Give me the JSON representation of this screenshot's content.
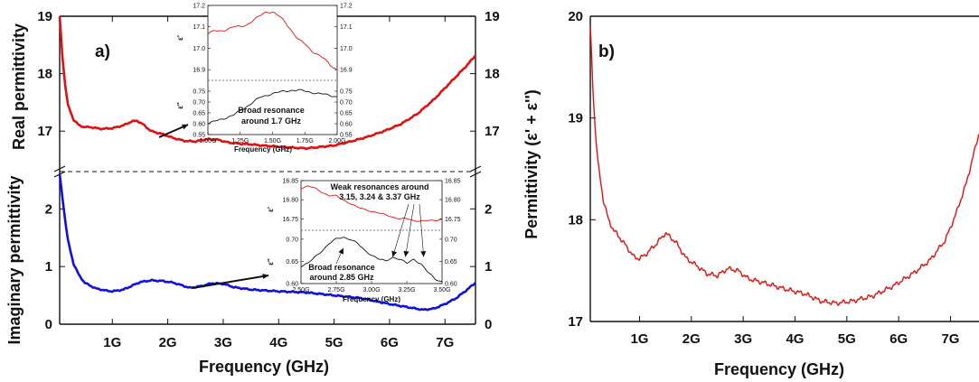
{
  "chart_data": [
    {
      "panel": "a)",
      "type": "line",
      "xlabel": "Frequency (GHz)",
      "x_ticks": [
        "1G",
        "2G",
        "3G",
        "4G",
        "5G",
        "6G",
        "7G"
      ],
      "xlim": [
        0.05,
        7.55
      ],
      "upper": {
        "ylabel": "Real permittivity",
        "ylim": [
          16.5,
          19
        ],
        "y_ticks": [
          "17",
          "18",
          "19"
        ],
        "series": [
          {
            "color": "#e01010",
            "x": [
              0.05,
              0.1,
              0.15,
              0.2,
              0.3,
              0.4,
              0.5,
              0.6,
              0.8,
              1.0,
              1.2,
              1.35,
              1.45,
              1.55,
              1.7,
              1.9,
              2.1,
              2.3,
              2.5,
              2.7,
              2.9,
              3.1,
              3.3,
              3.5,
              3.7,
              4.0,
              4.3,
              4.5,
              4.7,
              5.0,
              5.3,
              5.6,
              5.9,
              6.2,
              6.5,
              6.8,
              7.0,
              7.2,
              7.4,
              7.55
            ],
            "y": [
              19.0,
              18.3,
              17.8,
              17.45,
              17.2,
              17.1,
              17.07,
              17.07,
              17.04,
              17.05,
              17.1,
              17.17,
              17.18,
              17.12,
              17.0,
              16.95,
              16.88,
              16.83,
              16.82,
              16.86,
              16.85,
              16.8,
              16.78,
              16.77,
              16.75,
              16.73,
              16.71,
              16.7,
              16.72,
              16.75,
              16.82,
              16.9,
              17.0,
              17.12,
              17.3,
              17.55,
              17.75,
              17.95,
              18.15,
              18.32
            ]
          }
        ]
      },
      "lower": {
        "ylabel": "Imaginary permittivity",
        "ylim": [
          0,
          2.6
        ],
        "y_ticks": [
          "0",
          "1",
          "2"
        ],
        "series": [
          {
            "color": "#1010e0",
            "x": [
              0.05,
              0.1,
              0.15,
              0.2,
              0.3,
              0.4,
              0.5,
              0.7,
              0.9,
              1.0,
              1.2,
              1.5,
              1.7,
              1.9,
              2.1,
              2.4,
              2.6,
              2.8,
              3.0,
              3.2,
              3.5,
              4.0,
              4.5,
              5.0,
              5.5,
              6.0,
              6.3,
              6.6,
              6.8,
              7.0,
              7.2,
              7.4,
              7.55
            ],
            "y": [
              2.6,
              2.2,
              1.8,
              1.45,
              1.05,
              0.85,
              0.72,
              0.62,
              0.58,
              0.57,
              0.6,
              0.73,
              0.76,
              0.75,
              0.72,
              0.63,
              0.66,
              0.71,
              0.7,
              0.64,
              0.6,
              0.57,
              0.55,
              0.5,
              0.45,
              0.35,
              0.3,
              0.25,
              0.27,
              0.35,
              0.45,
              0.6,
              0.72
            ]
          }
        ]
      },
      "inset_upper": {
        "xlabel": "Frequency (GHz)",
        "x_ticks": [
          "1.00G",
          "1.25G",
          "1.50G",
          "1.75G",
          "2.00G"
        ],
        "xlim": [
          1.0,
          2.0
        ],
        "top": {
          "ylabel": "ε'",
          "ylim": [
            16.85,
            17.2
          ],
          "y_ticks": [
            "16.9",
            "17.0",
            "17.1",
            "17.2"
          ],
          "color": "#e01010",
          "x": [
            1.0,
            1.05,
            1.1,
            1.15,
            1.2,
            1.25,
            1.3,
            1.35,
            1.4,
            1.45,
            1.5,
            1.55,
            1.6,
            1.65,
            1.7,
            1.75,
            1.8,
            1.85,
            1.9,
            1.95,
            2.0
          ],
          "y": [
            17.07,
            17.08,
            17.08,
            17.09,
            17.1,
            17.1,
            17.11,
            17.13,
            17.15,
            17.17,
            17.17,
            17.15,
            17.12,
            17.08,
            17.04,
            17.02,
            16.99,
            16.97,
            16.95,
            16.92,
            16.9
          ]
        },
        "bottom": {
          "ylabel": "ε''",
          "ylim": [
            0.55,
            0.8
          ],
          "y_ticks": [
            "0.55",
            "0.60",
            "0.65",
            "0.70",
            "0.75"
          ],
          "color": "#111111",
          "x": [
            1.0,
            1.05,
            1.1,
            1.15,
            1.2,
            1.25,
            1.3,
            1.35,
            1.4,
            1.45,
            1.5,
            1.55,
            1.6,
            1.65,
            1.7,
            1.75,
            1.8,
            1.85,
            1.9,
            1.95,
            2.0
          ],
          "y": [
            0.6,
            0.61,
            0.62,
            0.63,
            0.64,
            0.66,
            0.68,
            0.7,
            0.72,
            0.73,
            0.74,
            0.745,
            0.75,
            0.755,
            0.755,
            0.75,
            0.745,
            0.74,
            0.735,
            0.73,
            0.725
          ]
        },
        "annotation": "Broad resonance around 1.7 GHz"
      },
      "inset_lower": {
        "xlabel": "Frequency (GHz)",
        "x_ticks": [
          "2.50G",
          "2.75G",
          "3.00G",
          "3.25G",
          "3.50G"
        ],
        "xlim": [
          2.5,
          3.5
        ],
        "top": {
          "ylabel": "ε'",
          "ylim": [
            16.72,
            16.85
          ],
          "y_ticks": [
            "16.75",
            "16.80",
            "16.85"
          ],
          "color": "#e01010",
          "x": [
            2.5,
            2.55,
            2.6,
            2.65,
            2.7,
            2.75,
            2.8,
            2.85,
            2.9,
            2.95,
            3.0,
            3.05,
            3.1,
            3.15,
            3.2,
            3.25,
            3.3,
            3.35,
            3.4,
            3.45,
            3.5
          ],
          "y": [
            16.83,
            16.835,
            16.83,
            16.82,
            16.81,
            16.81,
            16.8,
            16.79,
            16.78,
            16.775,
            16.77,
            16.765,
            16.76,
            16.755,
            16.75,
            16.75,
            16.745,
            16.745,
            16.745,
            16.745,
            16.75
          ]
        },
        "bottom": {
          "ylabel": "ε''",
          "ylim": [
            0.6,
            0.72
          ],
          "y_ticks": [
            "0.60",
            "0.65",
            "0.70"
          ],
          "color": "#111111",
          "x": [
            2.5,
            2.55,
            2.6,
            2.65,
            2.7,
            2.75,
            2.8,
            2.85,
            2.9,
            2.95,
            3.0,
            3.05,
            3.1,
            3.15,
            3.2,
            3.25,
            3.3,
            3.35,
            3.4,
            3.45,
            3.5
          ],
          "y": [
            0.64,
            0.645,
            0.66,
            0.675,
            0.69,
            0.7,
            0.705,
            0.7,
            0.69,
            0.675,
            0.665,
            0.655,
            0.65,
            0.66,
            0.655,
            0.645,
            0.655,
            0.645,
            0.625,
            0.61,
            0.605
          ]
        },
        "annotation_top": "Weak resonances around 3.15, 3.24 & 3.37 GHz",
        "annotation_bottom": "Broad resonance around 2.85 GHz"
      }
    },
    {
      "panel": "b)",
      "type": "line",
      "xlabel": "Frequency (GHz)",
      "ylabel": "Permittivity (ε' + ε'')",
      "x_ticks": [
        "1G",
        "2G",
        "3G",
        "4G",
        "5G",
        "6G",
        "7G"
      ],
      "xlim": [
        0.05,
        7.55
      ],
      "ylim": [
        17,
        20
      ],
      "y_ticks": [
        "17",
        "18",
        "19",
        "20"
      ],
      "series": [
        {
          "color": "#e01010",
          "x": [
            0.05,
            0.1,
            0.15,
            0.2,
            0.3,
            0.4,
            0.5,
            0.7,
            0.9,
            1.0,
            1.1,
            1.3,
            1.5,
            1.7,
            1.9,
            2.1,
            2.3,
            2.5,
            2.7,
            2.9,
            3.1,
            3.4,
            3.8,
            4.2,
            4.5,
            4.8,
            5.1,
            5.5,
            5.9,
            6.3,
            6.6,
            6.9,
            7.1,
            7.3,
            7.45,
            7.55
          ],
          "y": [
            19.9,
            19.3,
            18.85,
            18.55,
            18.2,
            18.0,
            17.9,
            17.77,
            17.63,
            17.62,
            17.65,
            17.75,
            17.87,
            17.78,
            17.62,
            17.55,
            17.47,
            17.45,
            17.52,
            17.5,
            17.42,
            17.38,
            17.32,
            17.27,
            17.2,
            17.18,
            17.2,
            17.25,
            17.35,
            17.48,
            17.6,
            17.8,
            18.05,
            18.35,
            18.65,
            18.85
          ]
        }
      ]
    }
  ]
}
